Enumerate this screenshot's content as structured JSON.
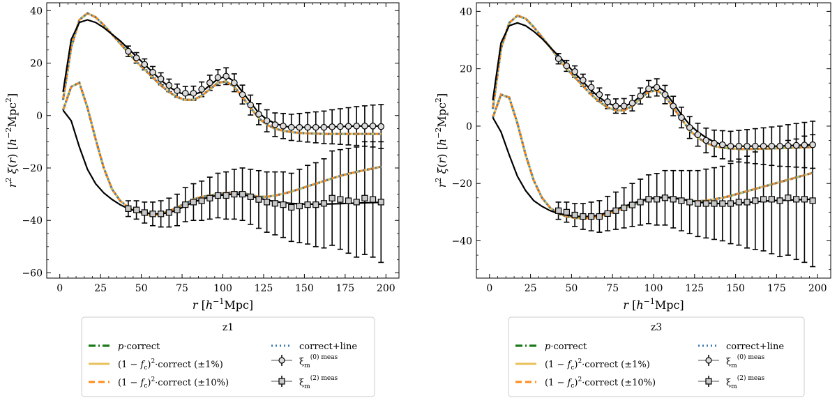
{
  "colors": {
    "model_solid": "#000000",
    "p_correct": "#1a7a1a",
    "fc_1pct": "#e8c15a",
    "fc_10pct": "#ff8c1a",
    "correct_line": "#3a78b0",
    "meas_mono_face": "#dcdcdc",
    "meas_quad_face": "#c8c8c8",
    "errorbar": "#000000",
    "frame": "#000000"
  },
  "chart_data": [
    {
      "type": "line",
      "panel": "z1",
      "xlabel": "r [h^-1 Mpc]",
      "ylabel": "r^2 ξ(r) [h^-2 Mpc^2]",
      "xlim": [
        -8,
        208
      ],
      "ylim": [
        -62,
        43
      ],
      "xticks": [
        0,
        25,
        50,
        75,
        100,
        125,
        150,
        175,
        200
      ],
      "yticks": [
        -60,
        -40,
        -20,
        0,
        20,
        40
      ],
      "legend_title": "z1",
      "legend_labels": {
        "p_correct": "p·correct",
        "fc_1pct": "(1 − f_c)²·correct (±1%)",
        "fc_10pct": "(1 − f_c)²·correct (±10%)",
        "correct_line": "correct+line",
        "meas_mono": "ξm(0) meas",
        "meas_quad": "ξm(2) meas"
      },
      "model_mono": {
        "x": [
          2,
          7,
          12,
          17,
          22,
          27,
          32,
          37,
          42,
          47,
          52,
          57,
          62,
          67,
          72,
          77,
          82,
          87,
          92,
          97,
          102,
          107,
          112,
          117,
          122,
          127,
          132,
          137,
          142,
          147,
          152,
          157,
          162,
          167,
          172,
          177,
          182,
          187,
          192,
          197
        ],
        "y": [
          9,
          29,
          35.5,
          36.5,
          35.5,
          33.5,
          31,
          28.5,
          25.5,
          22.5,
          19.5,
          16.5,
          13.5,
          11,
          9,
          8,
          8,
          9,
          11.5,
          14,
          15,
          13,
          9,
          5,
          1,
          -1.5,
          -3,
          -4,
          -4.5,
          -4.5,
          -4.5,
          -4.5,
          -4.5,
          -4.3,
          -4.2,
          -4.1,
          -4,
          -4,
          -4,
          -4
        ]
      },
      "model_quad": {
        "x": [
          2,
          7,
          12,
          17,
          22,
          27,
          32,
          37,
          42,
          47,
          52,
          57,
          62,
          67,
          72,
          77,
          82,
          87,
          92,
          97,
          102,
          107,
          112,
          117,
          122,
          127,
          132,
          137,
          142,
          147,
          152,
          157,
          162,
          167,
          172,
          177,
          182,
          187,
          192,
          197
        ],
        "y": [
          2,
          -2,
          -12,
          -20.5,
          -26,
          -29.5,
          -32,
          -34,
          -35.5,
          -36.5,
          -37,
          -37.5,
          -37.5,
          -37,
          -36,
          -34.5,
          -33,
          -32,
          -31,
          -30.5,
          -30.2,
          -30,
          -30.2,
          -30.8,
          -31.5,
          -32.2,
          -32.8,
          -33.2,
          -33.5,
          -33.7,
          -33.8,
          -33.8,
          -33.8,
          -33.7,
          -33.6,
          -33.5,
          -33.4,
          -33.3,
          -33.2,
          -33.1
        ]
      },
      "p_mono": {
        "x": [
          2,
          7,
          12,
          17,
          22,
          27,
          32,
          37,
          42,
          47,
          52,
          57,
          62,
          67,
          72,
          77,
          82,
          87,
          92,
          97,
          102,
          107,
          112,
          117,
          122,
          127,
          132,
          137,
          142,
          147,
          152,
          157,
          162,
          167,
          172,
          177,
          182,
          187,
          192,
          197
        ],
        "y": [
          6,
          26,
          36.5,
          39,
          37.5,
          34.5,
          31,
          27.5,
          24,
          20.5,
          17.5,
          14.5,
          11.5,
          9,
          7,
          6,
          6,
          7.5,
          10,
          12.5,
          13,
          11,
          7,
          3,
          -1,
          -3.5,
          -5,
          -5.8,
          -6.3,
          -6.6,
          -6.8,
          -6.9,
          -7,
          -7,
          -7,
          -7,
          -7,
          -7,
          -7,
          -7
        ]
      },
      "p_quad": {
        "x": [
          2,
          7,
          12,
          17,
          22,
          27,
          32,
          37,
          42,
          47,
          52,
          57,
          62,
          67,
          72,
          77,
          82,
          87,
          92,
          97,
          102,
          107,
          112,
          117,
          122,
          127,
          132,
          137,
          142,
          147,
          152,
          157,
          162,
          167,
          172,
          177,
          182,
          187,
          192,
          197
        ],
        "y": [
          2,
          11,
          12.5,
          3,
          -9,
          -20,
          -28,
          -32.5,
          -35,
          -36.5,
          -37.5,
          -38,
          -37.5,
          -36.5,
          -35,
          -33.5,
          -32,
          -31,
          -30.5,
          -30,
          -29.5,
          -29.3,
          -29.5,
          -30.3,
          -31,
          -31,
          -30.5,
          -29.8,
          -29,
          -28,
          -27,
          -26,
          -25,
          -24,
          -23,
          -22.2,
          -21.5,
          -20.8,
          -20.2,
          -19.5
        ]
      },
      "meas_mono": {
        "x": [
          42,
          47,
          52,
          57,
          62,
          67,
          72,
          77,
          82,
          87,
          92,
          97,
          102,
          107,
          112,
          117,
          122,
          127,
          132,
          137,
          142,
          147,
          152,
          157,
          162,
          167,
          172,
          177,
          182,
          187,
          192,
          197
        ],
        "y": [
          24.5,
          22,
          19.5,
          16.5,
          14,
          11.5,
          9.5,
          8.5,
          8.5,
          10,
          12.5,
          14.5,
          15,
          12.5,
          8,
          4,
          0.5,
          -2,
          -3.5,
          -4,
          -4.5,
          -4.5,
          -4.5,
          -4.5,
          -4.5,
          -4.3,
          -4.2,
          -4.1,
          -4,
          -4,
          -4,
          -4.2
        ],
        "err": [
          2,
          2,
          2.1,
          2.2,
          2.3,
          2.4,
          2.5,
          2.6,
          2.7,
          2.8,
          2.9,
          3,
          3.2,
          3.4,
          3.6,
          3.8,
          4,
          4.2,
          4.5,
          4.8,
          5,
          5.3,
          5.6,
          5.9,
          6.2,
          6.5,
          6.8,
          7.1,
          7.4,
          7.7,
          8,
          8.4
        ]
      },
      "meas_quad": {
        "x": [
          42,
          47,
          52,
          57,
          62,
          67,
          72,
          77,
          82,
          87,
          92,
          97,
          102,
          107,
          112,
          117,
          122,
          127,
          132,
          137,
          142,
          147,
          152,
          157,
          162,
          167,
          172,
          177,
          182,
          187,
          192,
          197
        ],
        "y": [
          -35.5,
          -36,
          -37,
          -37.5,
          -37.5,
          -37,
          -36,
          -34,
          -33,
          -32.5,
          -31.5,
          -30.5,
          -30.5,
          -30,
          -30,
          -31,
          -32,
          -33,
          -33.5,
          -34,
          -35,
          -34.5,
          -34,
          -34,
          -33.5,
          -31.5,
          -32,
          -32.5,
          -33,
          -31.5,
          -32,
          -33
        ],
        "err": [
          3,
          3.5,
          4,
          4.5,
          5,
          5.5,
          6,
          6.5,
          7,
          7.5,
          8,
          8.5,
          9,
          9.5,
          10,
          10.5,
          11,
          11.5,
          12,
          12.5,
          13,
          14,
          15,
          16,
          17,
          18,
          19,
          20,
          21,
          21.5,
          22,
          23
        ]
      }
    },
    {
      "type": "line",
      "panel": "z3",
      "xlabel": "r [h^-1 Mpc]",
      "ylabel": "r^2 ξ(r) [h^-2 Mpc^2]",
      "xlim": [
        -8,
        208
      ],
      "ylim": [
        -53,
        43
      ],
      "xticks": [
        0,
        25,
        50,
        75,
        100,
        125,
        150,
        175,
        200
      ],
      "yticks": [
        -40,
        -20,
        0,
        20,
        40
      ],
      "legend_title": "z3",
      "legend_labels": {
        "p_correct": "p·correct",
        "fc_1pct": "(1 − f_c)²·correct (±1%)",
        "fc_10pct": "(1 − f_c)²·correct (±10%)",
        "correct_line": "correct+line",
        "meas_mono": "ξm(0) meas",
        "meas_quad": "ξm(2) meas"
      },
      "model_mono": {
        "x": [
          2,
          7,
          12,
          17,
          22,
          27,
          32,
          37,
          42,
          47,
          52,
          57,
          62,
          67,
          72,
          77,
          82,
          87,
          92,
          97,
          102,
          107,
          112,
          117,
          122,
          127,
          132,
          137,
          142,
          147,
          152,
          157,
          162,
          167,
          172,
          177,
          182,
          187,
          192,
          197
        ],
        "y": [
          9,
          29,
          35,
          36,
          35,
          33,
          30.5,
          27.5,
          24.5,
          21.5,
          18.5,
          15.5,
          12.5,
          10,
          8,
          7,
          7,
          8,
          10.5,
          13,
          14,
          12,
          8,
          4,
          0.5,
          -2,
          -4,
          -5.5,
          -6.5,
          -7,
          -7,
          -7,
          -7,
          -7,
          -7,
          -7,
          -6.8,
          -6.7,
          -6.6,
          -6.5
        ]
      },
      "model_quad": {
        "x": [
          2,
          7,
          12,
          17,
          22,
          27,
          32,
          37,
          42,
          47,
          52,
          57,
          62,
          67,
          72,
          77,
          82,
          87,
          92,
          97,
          102,
          107,
          112,
          117,
          122,
          127,
          132,
          137,
          142,
          147,
          152,
          157,
          162,
          167,
          172,
          177,
          182,
          187,
          192,
          197
        ],
        "y": [
          3,
          -2,
          -10,
          -17.5,
          -22.5,
          -26,
          -28,
          -29.5,
          -30.5,
          -31,
          -31.5,
          -31.5,
          -31.5,
          -31,
          -30,
          -29,
          -28,
          -27,
          -26,
          -25.3,
          -25,
          -24.8,
          -25,
          -25.5,
          -26,
          -26.5,
          -26.8,
          -27,
          -27,
          -27,
          -26.8,
          -26.6,
          -26.4,
          -26.2,
          -26,
          -25.9,
          -25.8,
          -25.7,
          -25.6,
          -25.5
        ]
      },
      "p_mono": {
        "x": [
          2,
          7,
          12,
          17,
          22,
          27,
          32,
          37,
          42,
          47,
          52,
          57,
          62,
          67,
          72,
          77,
          82,
          87,
          92,
          97,
          102,
          107,
          112,
          117,
          122,
          127,
          132,
          137,
          142,
          147,
          152,
          157,
          162,
          167,
          172,
          177,
          182,
          187,
          192,
          197
        ],
        "y": [
          6,
          27,
          36,
          38.5,
          37.5,
          34.5,
          31,
          27.5,
          23.5,
          20,
          17,
          14,
          11,
          8.5,
          6.5,
          5.5,
          5.5,
          7,
          9.5,
          12,
          12.5,
          10.5,
          6.5,
          2.5,
          -1.5,
          -4,
          -5.8,
          -7,
          -7.5,
          -7.8,
          -8,
          -8,
          -8,
          -7.9,
          -7.8,
          -7.7,
          -7.6,
          -7.5,
          -7.4,
          -7.3
        ]
      },
      "p_quad": {
        "x": [
          2,
          7,
          12,
          17,
          22,
          27,
          32,
          37,
          42,
          47,
          52,
          57,
          62,
          67,
          72,
          77,
          82,
          87,
          92,
          97,
          102,
          107,
          112,
          117,
          122,
          127,
          132,
          137,
          142,
          147,
          152,
          157,
          162,
          167,
          172,
          177,
          182,
          187,
          192,
          197
        ],
        "y": [
          3,
          11,
          10,
          1,
          -10,
          -19,
          -25,
          -28.5,
          -30.5,
          -31.5,
          -32,
          -32.2,
          -32,
          -31.5,
          -30.5,
          -29.5,
          -28.5,
          -27.5,
          -26.5,
          -25.5,
          -25,
          -24.8,
          -25,
          -25.5,
          -26,
          -26.2,
          -26,
          -25.5,
          -25,
          -24.3,
          -23.5,
          -22.7,
          -21.9,
          -21.1,
          -20.3,
          -19.5,
          -18.7,
          -17.9,
          -17.1,
          -16.3
        ]
      },
      "meas_mono": {
        "x": [
          42,
          47,
          52,
          57,
          62,
          67,
          72,
          77,
          82,
          87,
          92,
          97,
          102,
          107,
          112,
          117,
          122,
          127,
          132,
          137,
          142,
          147,
          152,
          157,
          162,
          167,
          172,
          177,
          182,
          187,
          192,
          197
        ],
        "y": [
          23.5,
          21,
          19,
          16,
          13.5,
          11,
          8.5,
          7,
          7,
          8,
          10.5,
          13,
          13.5,
          11,
          7,
          3,
          -0.5,
          -3,
          -5,
          -6,
          -6.5,
          -7,
          -7,
          -7,
          -7,
          -7,
          -7,
          -7,
          -6.8,
          -6.7,
          -6.6,
          -6.5
        ],
        "err": [
          1.8,
          1.9,
          2,
          2.1,
          2.2,
          2.3,
          2.4,
          2.5,
          2.6,
          2.7,
          2.8,
          2.9,
          3,
          3.2,
          3.4,
          3.6,
          3.8,
          4,
          4.3,
          4.6,
          4.9,
          5.2,
          5.5,
          5.8,
          6.1,
          6.4,
          6.7,
          7,
          7.3,
          7.6,
          7.9,
          8.2
        ]
      },
      "meas_quad": {
        "x": [
          42,
          47,
          52,
          57,
          62,
          67,
          72,
          77,
          82,
          87,
          92,
          97,
          102,
          107,
          112,
          117,
          122,
          127,
          132,
          137,
          142,
          147,
          152,
          157,
          162,
          167,
          172,
          177,
          182,
          187,
          192,
          197
        ],
        "y": [
          -29.5,
          -30,
          -31,
          -31.5,
          -31.5,
          -31.5,
          -30.5,
          -29.5,
          -28.5,
          -27.5,
          -26.5,
          -25.5,
          -25.5,
          -25,
          -25.5,
          -26,
          -26.5,
          -27,
          -27,
          -27,
          -27,
          -27,
          -26.5,
          -26.5,
          -26,
          -25.5,
          -25.5,
          -26,
          -25,
          -25.5,
          -25.5,
          -26
        ],
        "err": [
          3,
          3.5,
          4,
          4.5,
          5,
          5.5,
          6,
          6.5,
          7,
          7.5,
          8,
          8.5,
          9,
          9.5,
          10,
          10.5,
          11,
          11.5,
          12,
          12.5,
          13,
          14,
          15,
          16,
          17,
          18,
          19,
          19.5,
          20,
          21,
          22,
          23
        ]
      }
    }
  ]
}
